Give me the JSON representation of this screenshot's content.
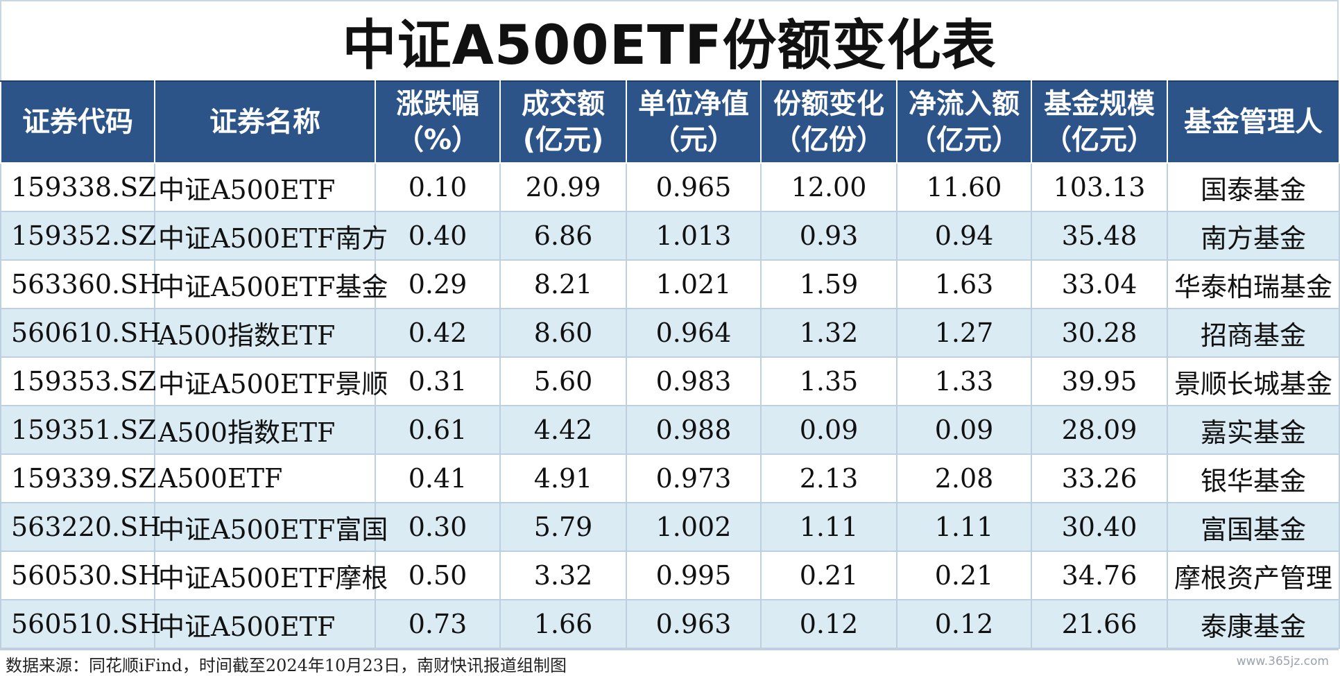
{
  "title": "中证A500ETF份额变化表",
  "source_note": "数据来源：同花顺iFind，时间截至2024年10月23日，南财快讯报道组制图",
  "watermark": "www.365jz.com",
  "chart_data": {
    "type": "table",
    "title": "中证A500ETF份额变化表",
    "columns": [
      {
        "line1": "证券代码",
        "line2": ""
      },
      {
        "line1": "证券名称",
        "line2": ""
      },
      {
        "line1": "涨跌幅",
        "line2": "（%）"
      },
      {
        "line1": "成交额",
        "line2": "(亿元)"
      },
      {
        "line1": "单位净值",
        "line2": "（元）"
      },
      {
        "line1": "份额变化",
        "line2": "（亿份）"
      },
      {
        "line1": "净流入额",
        "line2": "（亿元）"
      },
      {
        "line1": "基金规模",
        "line2": "（亿元）"
      },
      {
        "line1": "基金管理人",
        "line2": ""
      }
    ],
    "rows": [
      [
        "159338.SZ",
        "中证A500ETF",
        "0.10",
        "20.99",
        "0.965",
        "12.00",
        "11.60",
        "103.13",
        "国泰基金"
      ],
      [
        "159352.SZ",
        "中证A500ETF南方",
        "0.40",
        "6.86",
        "1.013",
        "0.93",
        "0.94",
        "35.48",
        "南方基金"
      ],
      [
        "563360.SH",
        "中证A500ETF基金",
        "0.29",
        "8.21",
        "1.021",
        "1.59",
        "1.63",
        "33.04",
        "华泰柏瑞基金"
      ],
      [
        "560610.SH",
        "A500指数ETF",
        "0.42",
        "8.60",
        "0.964",
        "1.32",
        "1.27",
        "30.28",
        "招商基金"
      ],
      [
        "159353.SZ",
        "中证A500ETF景顺",
        "0.31",
        "5.60",
        "0.983",
        "1.35",
        "1.33",
        "39.95",
        "景顺长城基金"
      ],
      [
        "159351.SZ",
        "A500指数ETF",
        "0.61",
        "4.42",
        "0.988",
        "0.09",
        "0.09",
        "28.09",
        "嘉实基金"
      ],
      [
        "159339.SZ",
        "A500ETF",
        "0.41",
        "4.91",
        "0.973",
        "2.13",
        "2.08",
        "33.26",
        "银华基金"
      ],
      [
        "563220.SH",
        "中证A500ETF富国",
        "0.30",
        "5.79",
        "1.002",
        "1.11",
        "1.11",
        "30.40",
        "富国基金"
      ],
      [
        "560530.SH",
        "中证A500ETF摩根",
        "0.50",
        "3.32",
        "0.995",
        "0.21",
        "0.21",
        "34.76",
        "摩根资产管理"
      ],
      [
        "560510.SH",
        "中证A500ETF",
        "0.73",
        "1.66",
        "0.963",
        "0.12",
        "0.12",
        "21.66",
        "泰康基金"
      ]
    ]
  }
}
